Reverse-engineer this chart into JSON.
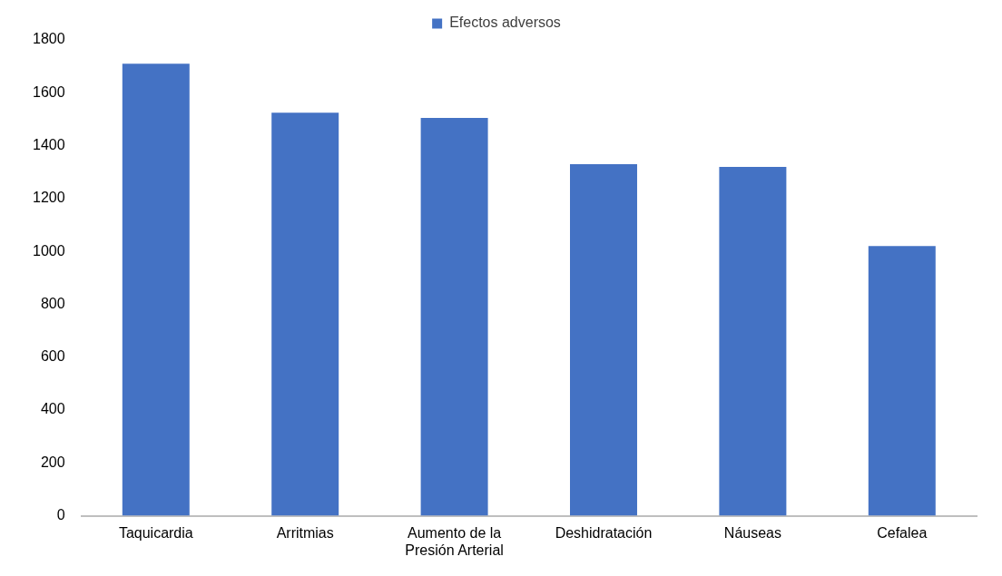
{
  "chart_data": {
    "type": "bar",
    "categories": [
      "Taquicardia",
      "Arritmias",
      "Aumento de la Presión Arterial",
      "Deshidratación",
      "Náuseas",
      "Cefalea"
    ],
    "series": [
      {
        "name": "Efectos adversos",
        "color": "#4472c4",
        "values": [
          1710,
          1525,
          1505,
          1330,
          1320,
          1020
        ]
      }
    ],
    "ylim": [
      0,
      1800
    ],
    "yticks": [
      0,
      200,
      400,
      600,
      800,
      1000,
      1200,
      1400,
      1600,
      1800
    ],
    "grid": false,
    "legend": "top"
  }
}
